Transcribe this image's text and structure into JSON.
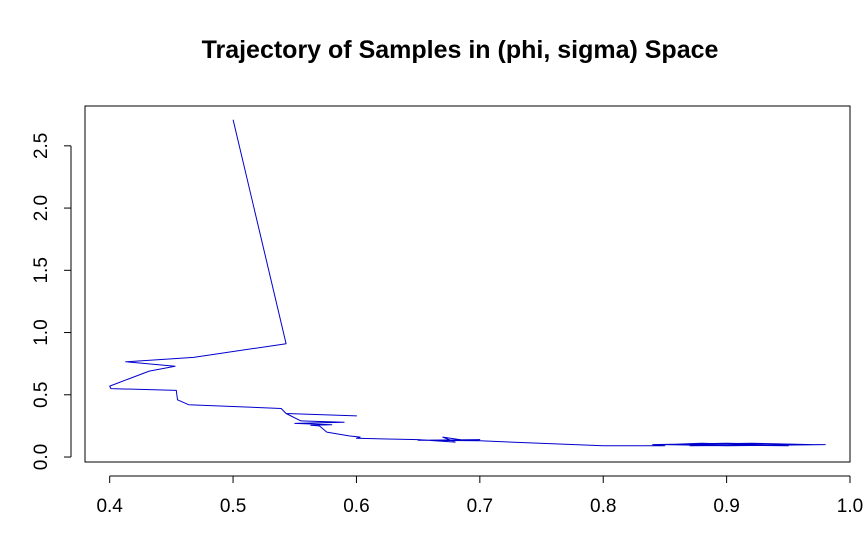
{
  "chart_data": {
    "type": "line",
    "title": "Trajectory of Samples in (phi, sigma) Space",
    "xlabel": "",
    "ylabel": "",
    "xlim": [
      0.38,
      1.0
    ],
    "ylim": [
      -0.04,
      2.82
    ],
    "x_ticks": [
      0.4,
      0.5,
      0.6,
      0.7,
      0.8,
      0.9,
      1.0
    ],
    "x_tick_labels": [
      "0.4",
      "0.5",
      "0.6",
      "0.7",
      "0.8",
      "0.9",
      "1.0"
    ],
    "y_ticks": [
      0.0,
      0.5,
      1.0,
      1.5,
      2.0,
      2.5
    ],
    "y_tick_labels": [
      "0.0",
      "0.5",
      "1.0",
      "1.5",
      "2.0",
      "2.5"
    ],
    "grid": false,
    "series": [
      {
        "color": "#0000cd",
        "x": [
          0.5,
          0.543,
          0.468,
          0.413,
          0.453,
          0.432,
          0.4,
          0.401,
          0.454,
          0.455,
          0.464,
          0.539,
          0.543,
          0.6,
          0.543,
          0.555,
          0.59,
          0.55,
          0.58,
          0.563,
          0.57,
          0.576,
          0.594,
          0.603,
          0.6,
          0.65,
          0.68,
          0.67,
          0.69,
          0.7,
          0.65,
          0.7,
          0.8,
          0.85,
          0.84,
          0.9,
          0.96,
          0.98,
          0.9,
          0.85,
          0.88,
          0.95,
          0.85,
          0.92,
          0.97,
          0.87
        ],
        "y": [
          2.71,
          0.91,
          0.8,
          0.765,
          0.73,
          0.69,
          0.57,
          0.55,
          0.535,
          0.46,
          0.42,
          0.39,
          0.35,
          0.33,
          0.35,
          0.29,
          0.28,
          0.27,
          0.26,
          0.255,
          0.25,
          0.2,
          0.17,
          0.16,
          0.15,
          0.14,
          0.12,
          0.16,
          0.13,
          0.14,
          0.135,
          0.13,
          0.09,
          0.09,
          0.1,
          0.11,
          0.1,
          0.1,
          0.09,
          0.1,
          0.11,
          0.09,
          0.1,
          0.11,
          0.1,
          0.09
        ]
      }
    ]
  }
}
